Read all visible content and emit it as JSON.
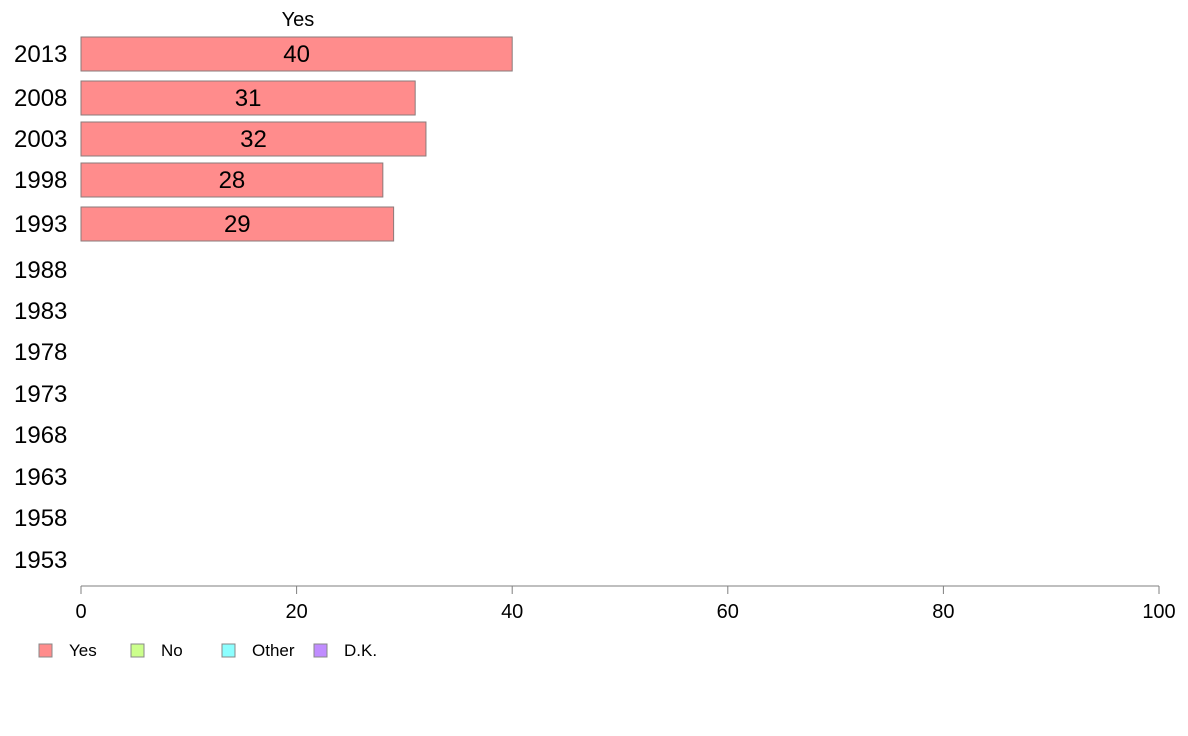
{
  "chart_data": {
    "type": "bar",
    "orientation": "horizontal",
    "column_title": "Yes",
    "categories": [
      "2013",
      "2008",
      "2003",
      "1998",
      "1993",
      "1988",
      "1983",
      "1978",
      "1973",
      "1968",
      "1963",
      "1958",
      "1953"
    ],
    "series": [
      {
        "name": "Yes",
        "values": [
          40,
          31,
          32,
          28,
          29,
          null,
          null,
          null,
          null,
          null,
          null,
          null,
          null
        ]
      }
    ],
    "value_labels": [
      "40",
      "31",
      "32",
      "28",
      "29"
    ],
    "xlim": [
      0,
      100
    ],
    "xticks": [
      "0",
      "20",
      "40",
      "60",
      "80",
      "100"
    ],
    "legend": {
      "placement": "bottom-left",
      "items": [
        {
          "label": "Yes",
          "color": "#ff8c8c"
        },
        {
          "label": "No",
          "color": "#ccff8c"
        },
        {
          "label": "Other",
          "color": "#8cffff"
        },
        {
          "label": "D.K.",
          "color": "#c08cff"
        }
      ]
    },
    "grid": false
  },
  "colors": {
    "bar_fill": "#ff8c8c",
    "bar_stroke": "#8a7a7a",
    "axis": "#7f7f7f"
  }
}
